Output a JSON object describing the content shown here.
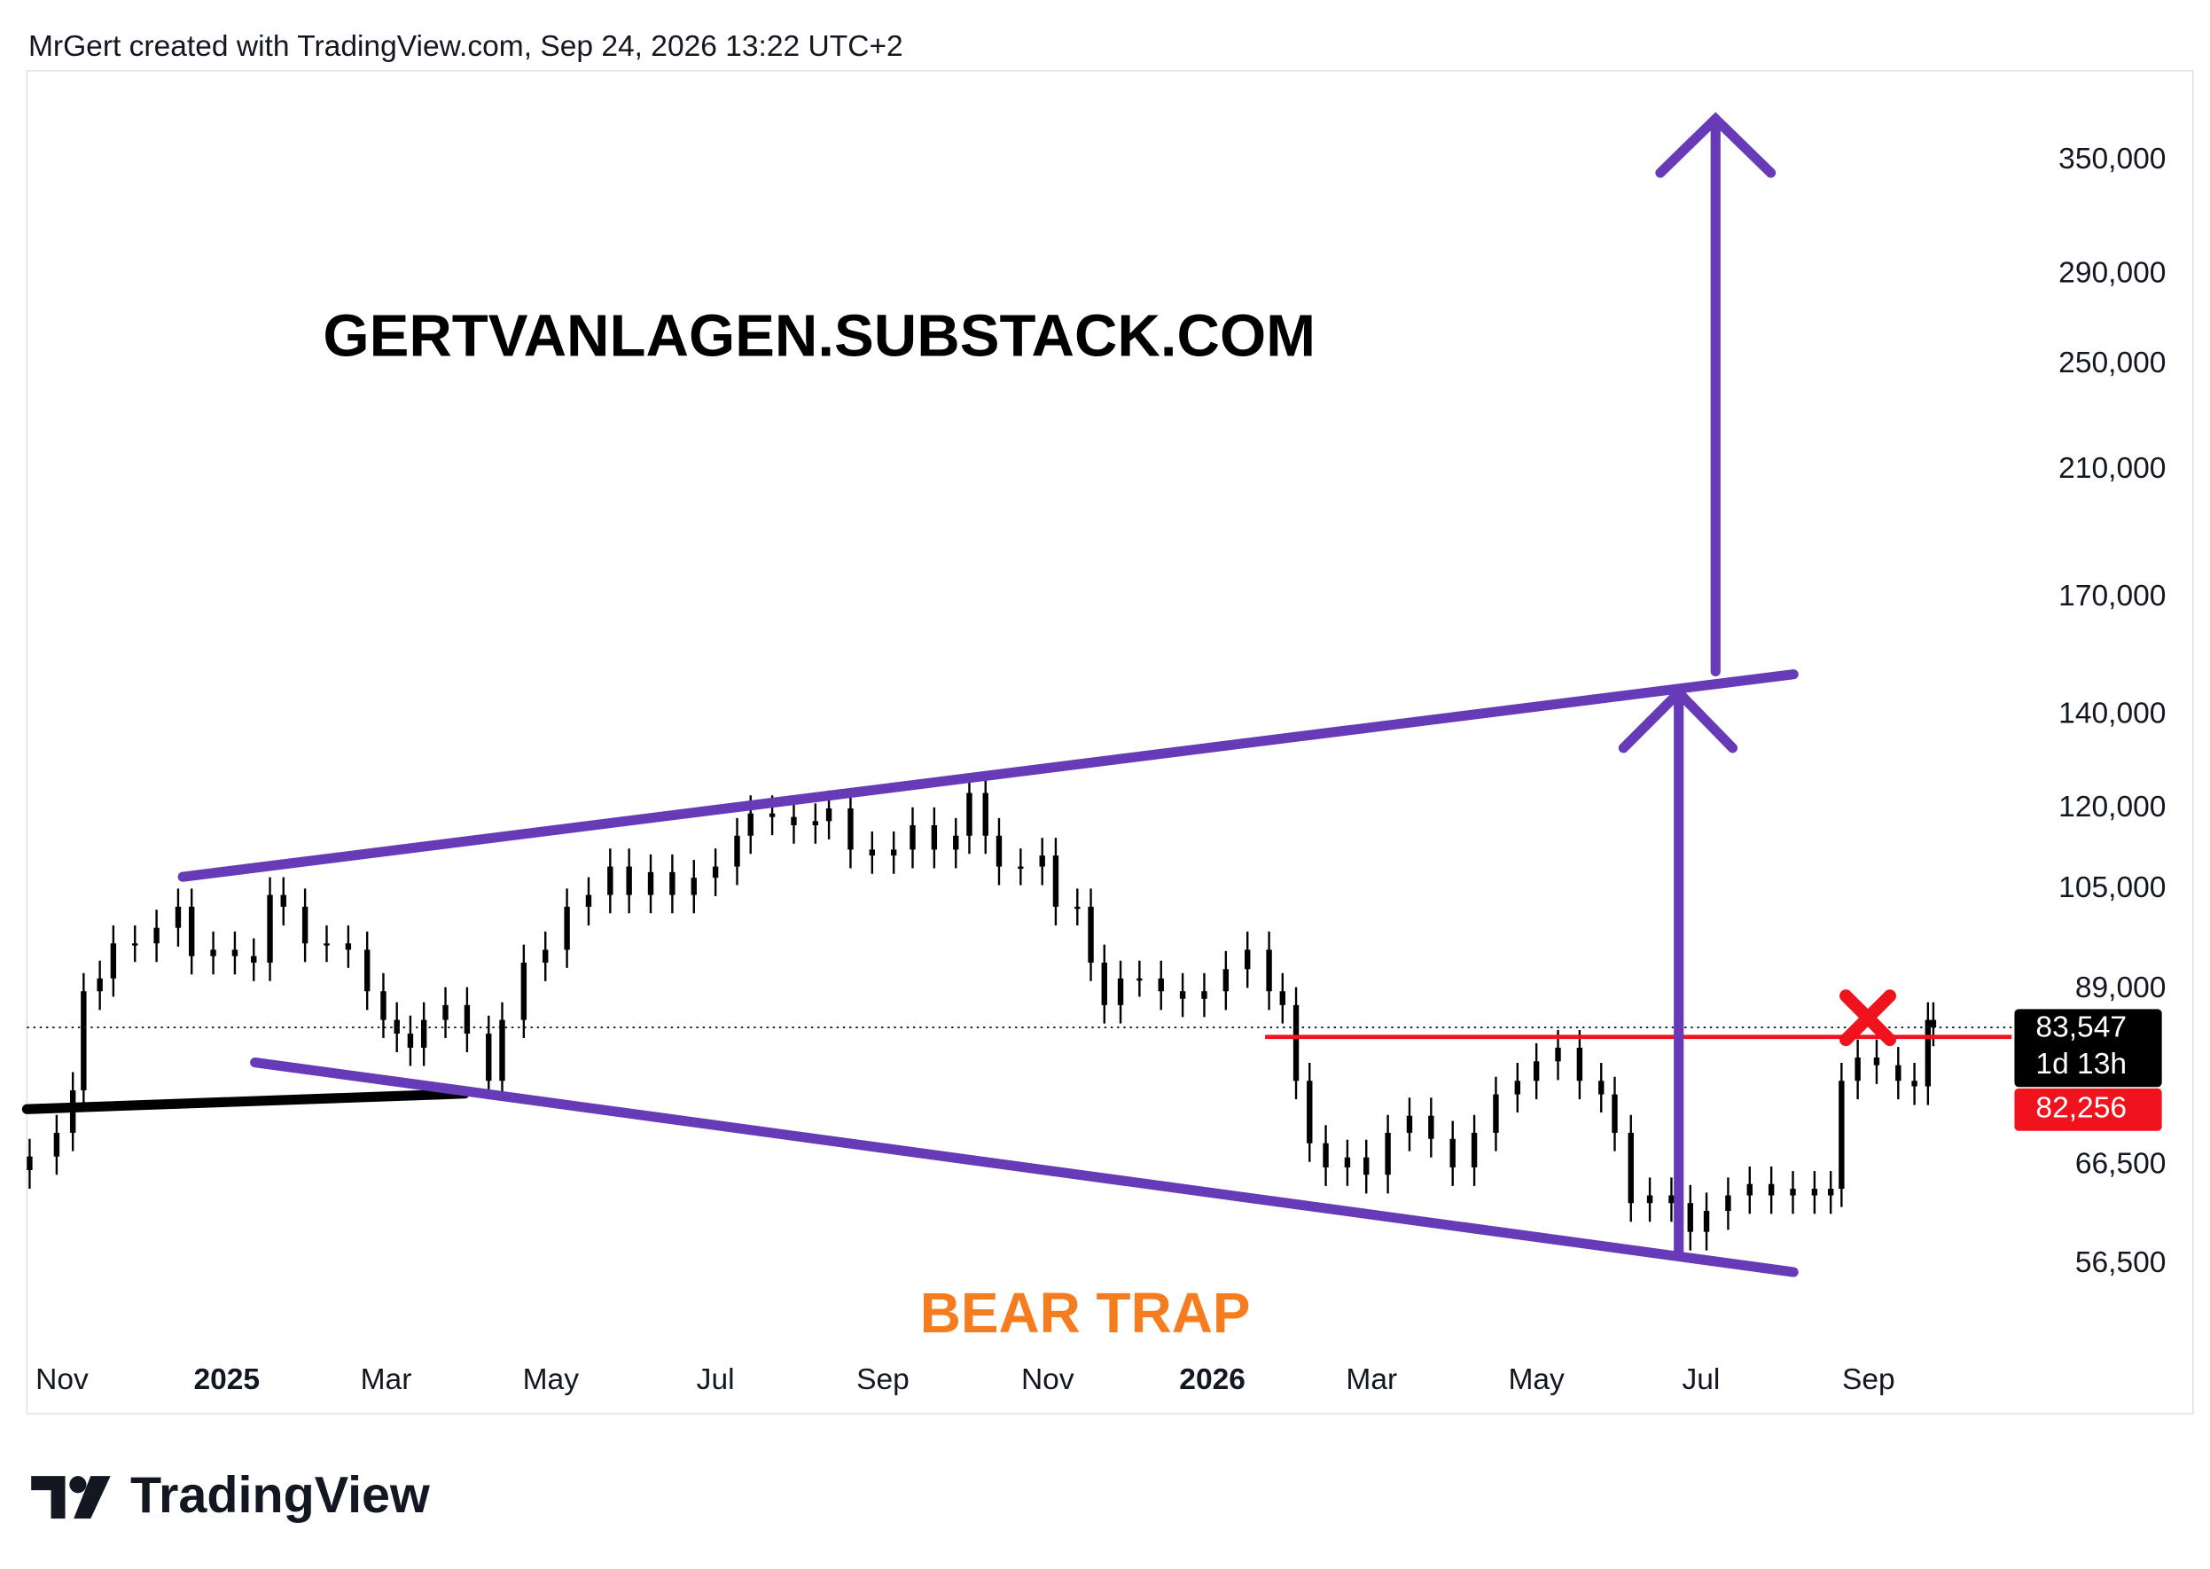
{
  "chart_data": {
    "type": "candlestick",
    "header": "MrGert created with TradingView.com, Sep 24, 2026 13:22 UTC+2",
    "watermark": "GERTVANLAGEN.SUBSTACK.COM",
    "annotation": "BEAR TRAP",
    "brand": "TradingView",
    "color": "#000000",
    "log_scale": true,
    "grid": false,
    "xlim": [
      -13,
      722
    ],
    "ylim": [
      48800,
      406000
    ],
    "xticks": [
      {
        "value": 0,
        "label": "Nov"
      },
      {
        "value": 61,
        "label": "2025"
      },
      {
        "value": 120,
        "label": "Mar"
      },
      {
        "value": 181,
        "label": "May"
      },
      {
        "value": 242,
        "label": "Jul"
      },
      {
        "value": 304,
        "label": "Sep"
      },
      {
        "value": 365,
        "label": "Nov"
      },
      {
        "value": 426,
        "label": "2026"
      },
      {
        "value": 485,
        "label": "Mar"
      },
      {
        "value": 546,
        "label": "May"
      },
      {
        "value": 607,
        "label": "Jul"
      },
      {
        "value": 669,
        "label": "Sep"
      }
    ],
    "yticks": [
      {
        "value": 56500,
        "label": "56,500"
      },
      {
        "value": 66500,
        "label": "66,500"
      },
      {
        "value": 89000,
        "label": "89,000"
      },
      {
        "value": 105000,
        "label": "105,000"
      },
      {
        "value": 120000,
        "label": "120,000"
      },
      {
        "value": 140000,
        "label": "140,000"
      },
      {
        "value": 170000,
        "label": "170,000"
      },
      {
        "value": 210000,
        "label": "210,000"
      },
      {
        "value": 250000,
        "label": "250,000"
      },
      {
        "value": 290000,
        "label": "290,000"
      },
      {
        "value": 350000,
        "label": "350,000"
      }
    ],
    "last_price": {
      "value": 83547,
      "label": "83,547"
    },
    "countdown": "1d 13h",
    "level": {
      "value": 82256,
      "label": "82,256"
    },
    "x": [
      -12,
      -2,
      4,
      8,
      14,
      19,
      27,
      35,
      43,
      48,
      56,
      64,
      71,
      77,
      82,
      90,
      98,
      106,
      113,
      119,
      124,
      129,
      134,
      142,
      150,
      158,
      163,
      171,
      179,
      187,
      195,
      203,
      210,
      218,
      226,
      234,
      242,
      250,
      255,
      263,
      271,
      279,
      284,
      292,
      300,
      308,
      315,
      323,
      331,
      336,
      342,
      347,
      355,
      363,
      368,
      376,
      381,
      386,
      392,
      399,
      407,
      415,
      423,
      431,
      439,
      447,
      452,
      457,
      462,
      468,
      476,
      483,
      491,
      499,
      507,
      515,
      523,
      531,
      539,
      546,
      554,
      562,
      570,
      575,
      581,
      588,
      596,
      603,
      609,
      617,
      625,
      633,
      641,
      649,
      655,
      659,
      665,
      672,
      680,
      686,
      691,
      693
    ],
    "open": [
      66000,
      67500,
      70200,
      75300,
      88700,
      90600,
      96000,
      96000,
      98500,
      102000,
      94000,
      95000,
      94000,
      93000,
      104000,
      102000,
      96000,
      96000,
      95000,
      88700,
      84600,
      82700,
      80800,
      84600,
      86700,
      82700,
      76500,
      84600,
      93000,
      95000,
      102000,
      104000,
      109000,
      104000,
      108000,
      104000,
      107000,
      109000,
      114700,
      119000,
      118300,
      116700,
      117500,
      120000,
      112100,
      111000,
      112100,
      116700,
      112100,
      114700,
      123100,
      114700,
      109000,
      109000,
      111000,
      102000,
      102000,
      93000,
      86700,
      90600,
      90600,
      88700,
      87600,
      88700,
      92000,
      95000,
      88700,
      86700,
      76500,
      69000,
      66300,
      67400,
      65500,
      70200,
      72200,
      69500,
      66300,
      70200,
      74800,
      76500,
      79000,
      80800,
      76500,
      74800,
      70200,
      62500,
      63300,
      62500,
      59600,
      61700,
      63300,
      64500,
      63300,
      64000,
      63300,
      64000,
      76500,
      79500,
      78500,
      76500,
      75800,
      84600
    ],
    "high": [
      69500,
      72300,
      77600,
      91400,
      93300,
      98900,
      98900,
      101500,
      105100,
      105100,
      97900,
      97900,
      96800,
      107100,
      107100,
      105100,
      98900,
      98900,
      97900,
      91400,
      87100,
      85200,
      87100,
      89300,
      89300,
      85200,
      87100,
      95800,
      97900,
      105100,
      107100,
      112300,
      112300,
      111200,
      111200,
      110200,
      112300,
      118100,
      122600,
      122600,
      121800,
      121000,
      123600,
      123600,
      115500,
      115500,
      120200,
      120200,
      118100,
      126800,
      126800,
      118100,
      112300,
      114300,
      114300,
      105100,
      105100,
      95800,
      93300,
      93300,
      93300,
      91400,
      91400,
      94800,
      97900,
      97900,
      91400,
      89300,
      78800,
      71100,
      69400,
      69400,
      72300,
      74400,
      74400,
      71600,
      72300,
      77000,
      78800,
      81400,
      83200,
      83200,
      78800,
      77000,
      72300,
      65200,
      65200,
      64400,
      63600,
      65200,
      66400,
      66400,
      65900,
      65900,
      65900,
      78800,
      81900,
      81900,
      80900,
      78800,
      87100,
      87100
    ],
    "low": [
      64000,
      65500,
      68100,
      73000,
      86000,
      87900,
      93100,
      93100,
      95500,
      91200,
      91200,
      91200,
      90200,
      90200,
      98900,
      93100,
      93100,
      92200,
      86000,
      82100,
      80200,
      78400,
      78400,
      82100,
      80200,
      74200,
      74200,
      82100,
      90200,
      92200,
      98900,
      100900,
      100900,
      100900,
      100900,
      100900,
      103800,
      105700,
      111300,
      114800,
      113200,
      113200,
      114000,
      108700,
      107700,
      107700,
      108700,
      108700,
      108700,
      111300,
      111300,
      105700,
      105700,
      105700,
      98900,
      98900,
      90200,
      84100,
      84100,
      87900,
      86000,
      85000,
      85000,
      86000,
      89200,
      86000,
      84100,
      74200,
      66900,
      64300,
      64300,
      63500,
      63500,
      68100,
      67400,
      64300,
      64300,
      68100,
      72600,
      74200,
      76600,
      74200,
      72600,
      68100,
      60600,
      60600,
      60600,
      57800,
      57800,
      59800,
      61400,
      61400,
      61400,
      61400,
      61400,
      62100,
      74200,
      76100,
      74200,
      73500,
      73500,
      81000
    ],
    "close": [
      67500,
      70200,
      75300,
      88700,
      90600,
      96000,
      96000,
      98500,
      102000,
      94000,
      95000,
      94000,
      93000,
      104000,
      102000,
      96000,
      96000,
      95000,
      88700,
      84600,
      82700,
      80800,
      84600,
      86700,
      82700,
      76500,
      84600,
      93000,
      95000,
      102000,
      104000,
      109000,
      104000,
      108000,
      104000,
      107000,
      109000,
      114700,
      119000,
      118300,
      116700,
      117500,
      120000,
      112100,
      111000,
      112100,
      116700,
      112100,
      114700,
      123100,
      114700,
      109000,
      109000,
      111000,
      102000,
      102000,
      93000,
      86700,
      90600,
      90600,
      88700,
      87600,
      88700,
      92000,
      95000,
      88700,
      86700,
      76500,
      69000,
      66300,
      67400,
      65500,
      70200,
      72200,
      69500,
      66300,
      70200,
      74800,
      76500,
      79000,
      80800,
      76500,
      74800,
      70200,
      62500,
      63300,
      62500,
      59600,
      61700,
      63300,
      64500,
      63300,
      64000,
      63300,
      64000,
      76500,
      79500,
      78500,
      76500,
      75800,
      84600,
      83547
    ]
  }
}
